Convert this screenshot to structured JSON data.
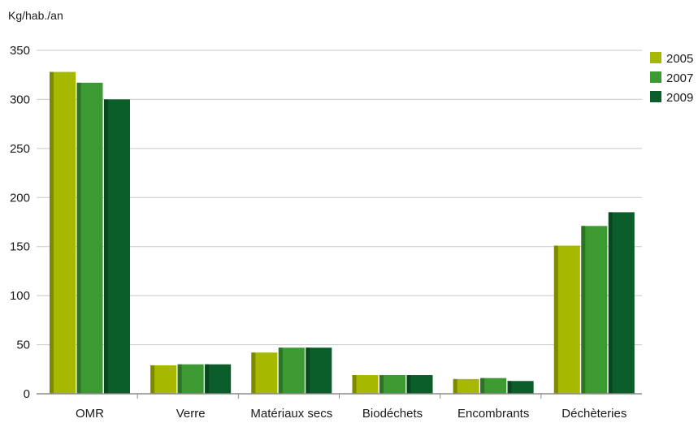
{
  "chart_data": {
    "type": "bar",
    "ylabel": "Kg/hab./an",
    "ylim": [
      0,
      350
    ],
    "yticks": [
      0,
      50,
      100,
      150,
      200,
      250,
      300,
      350
    ],
    "grid": true,
    "legend_position": "top-right",
    "categories": [
      "OMR",
      "Verre",
      "Matériaux secs",
      "Biodéchets",
      "Encombrants",
      "Déchèteries"
    ],
    "series": [
      {
        "name": "2005",
        "color": "#a6b800",
        "values": [
          328,
          29,
          42,
          19,
          15,
          151
        ]
      },
      {
        "name": "2007",
        "color": "#3d9a32",
        "values": [
          317,
          30,
          47,
          19,
          16,
          171
        ]
      },
      {
        "name": "2009",
        "color": "#0b5e2a",
        "values": [
          300,
          30,
          47,
          19,
          13,
          185
        ]
      }
    ]
  }
}
